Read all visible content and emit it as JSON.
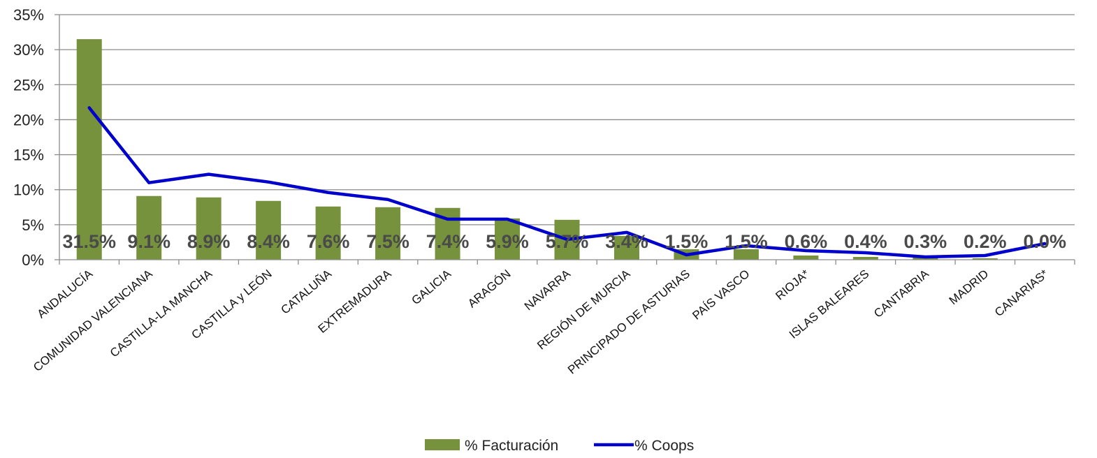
{
  "chart_data": {
    "type": "bar",
    "categories": [
      "ANDALUCÍA",
      "COMUNIDAD VALENCIANA",
      "CASTILLA-LA MANCHA",
      "CASTILLA y LEÓN",
      "CATALUÑA",
      "EXTREMADURA",
      "GALICIA",
      "ARAGÓN",
      "NAVARRA",
      "REGIÓN DE MURCIA",
      "PRINCIPADO DE ASTURIAS",
      "PAÍS VASCO",
      "RIOJA*",
      "ISLAS BALEARES",
      "CANTABRIA",
      "MADRID",
      "CANARIAS*"
    ],
    "series": [
      {
        "name": "% Facturación",
        "type": "bar",
        "color": "#76923C",
        "values": [
          31.5,
          9.1,
          8.9,
          8.4,
          7.6,
          7.5,
          7.4,
          5.9,
          5.7,
          3.4,
          1.5,
          1.5,
          0.6,
          0.4,
          0.3,
          0.2,
          0.0
        ],
        "data_labels": [
          "31.5%",
          "9.1%",
          "8.9%",
          "8.4%",
          "7.6%",
          "7.5%",
          "7.4%",
          "5.9%",
          "5.7%",
          "3.4%",
          "1.5%",
          "1.5%",
          "0.6%",
          "0.4%",
          "0.3%",
          "0.2%",
          "0.0%"
        ]
      },
      {
        "name": "% Coops",
        "type": "line",
        "color": "#0000CC",
        "values": [
          21.7,
          11.0,
          12.2,
          11.1,
          9.6,
          8.6,
          5.8,
          5.8,
          2.9,
          3.9,
          0.7,
          2.0,
          1.3,
          1.0,
          0.4,
          0.6,
          2.3
        ]
      }
    ],
    "y_ticks": [
      "0%",
      "5%",
      "10%",
      "15%",
      "20%",
      "25%",
      "30%",
      "35%"
    ],
    "ylim": [
      0,
      35
    ],
    "grid": true,
    "legend": "bottom-center"
  }
}
